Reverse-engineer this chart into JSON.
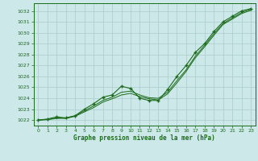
{
  "title": "Graphe pression niveau de la mer (hPa)",
  "bg_color": "#cce8e8",
  "grid_color": "#aacccc",
  "line_color": "#1a6b1a",
  "marker_color": "#1a6b1a",
  "xlim": [
    -0.5,
    23.5
  ],
  "ylim": [
    1021.5,
    1032.7
  ],
  "yticks": [
    1022,
    1023,
    1024,
    1025,
    1026,
    1027,
    1028,
    1029,
    1030,
    1031,
    1032
  ],
  "xticks": [
    0,
    1,
    2,
    3,
    4,
    5,
    6,
    7,
    8,
    9,
    10,
    11,
    12,
    13,
    14,
    15,
    16,
    17,
    18,
    19,
    20,
    21,
    22,
    23
  ],
  "series_main": [
    1022.0,
    1022.1,
    1022.3,
    1022.2,
    1022.4,
    1023.0,
    1023.5,
    1024.1,
    1024.3,
    1025.1,
    1024.9,
    1024.0,
    1023.8,
    1023.8,
    1024.8,
    1026.0,
    1027.0,
    1028.2,
    1029.0,
    1030.1,
    1031.0,
    1031.5,
    1032.0,
    1032.2
  ],
  "series_smooth1": [
    1022.0,
    1022.05,
    1022.15,
    1022.2,
    1022.4,
    1022.85,
    1023.3,
    1023.8,
    1024.1,
    1024.55,
    1024.65,
    1024.3,
    1024.05,
    1024.0,
    1024.55,
    1025.6,
    1026.6,
    1027.85,
    1028.85,
    1029.9,
    1030.85,
    1031.35,
    1031.85,
    1032.15
  ],
  "series_smooth2": [
    1022.0,
    1022.05,
    1022.2,
    1022.15,
    1022.35,
    1022.75,
    1023.15,
    1023.65,
    1023.95,
    1024.3,
    1024.45,
    1024.15,
    1023.95,
    1023.85,
    1024.4,
    1025.4,
    1026.45,
    1027.7,
    1028.7,
    1029.75,
    1030.75,
    1031.25,
    1031.75,
    1032.05
  ]
}
